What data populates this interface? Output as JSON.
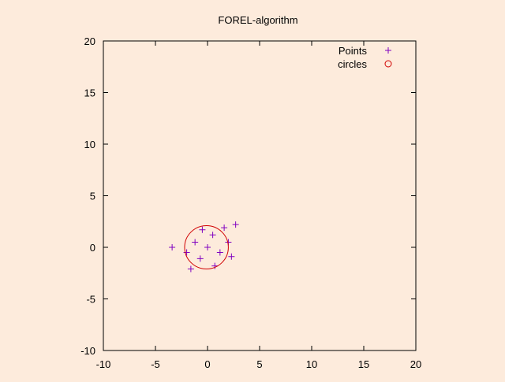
{
  "colors": {
    "background": "#fdebdc",
    "points": "#8000c0",
    "circles": "#d00000",
    "axis": "#000000"
  },
  "chart_data": {
    "type": "scatter",
    "title": "FOREL-algorithm",
    "xlabel": "",
    "ylabel": "",
    "xlim": [
      -10,
      20
    ],
    "ylim": [
      -10,
      20
    ],
    "xticks": [
      -10,
      -5,
      0,
      5,
      10,
      15,
      20
    ],
    "yticks": [
      -10,
      -5,
      0,
      5,
      10,
      15,
      20
    ],
    "grid": false,
    "legend_position": "top-right",
    "series": [
      {
        "name": "Points",
        "marker": "plus",
        "points": [
          [
            -3.4,
            0.0
          ],
          [
            -1.2,
            0.5
          ],
          [
            -0.5,
            1.7
          ],
          [
            0.5,
            1.2
          ],
          [
            1.6,
            1.9
          ],
          [
            2.7,
            2.2
          ],
          [
            2.0,
            0.5
          ],
          [
            0.0,
            0.0
          ],
          [
            1.2,
            -0.5
          ],
          [
            2.3,
            -0.9
          ],
          [
            -2.0,
            -0.5
          ],
          [
            -0.7,
            -1.1
          ],
          [
            0.7,
            -1.8
          ],
          [
            -1.6,
            -2.1
          ]
        ]
      },
      {
        "name": "circles",
        "marker": "circle",
        "circles": [
          {
            "cx": -0.1,
            "cy": 0.0,
            "r": 2.1
          }
        ]
      }
    ]
  }
}
